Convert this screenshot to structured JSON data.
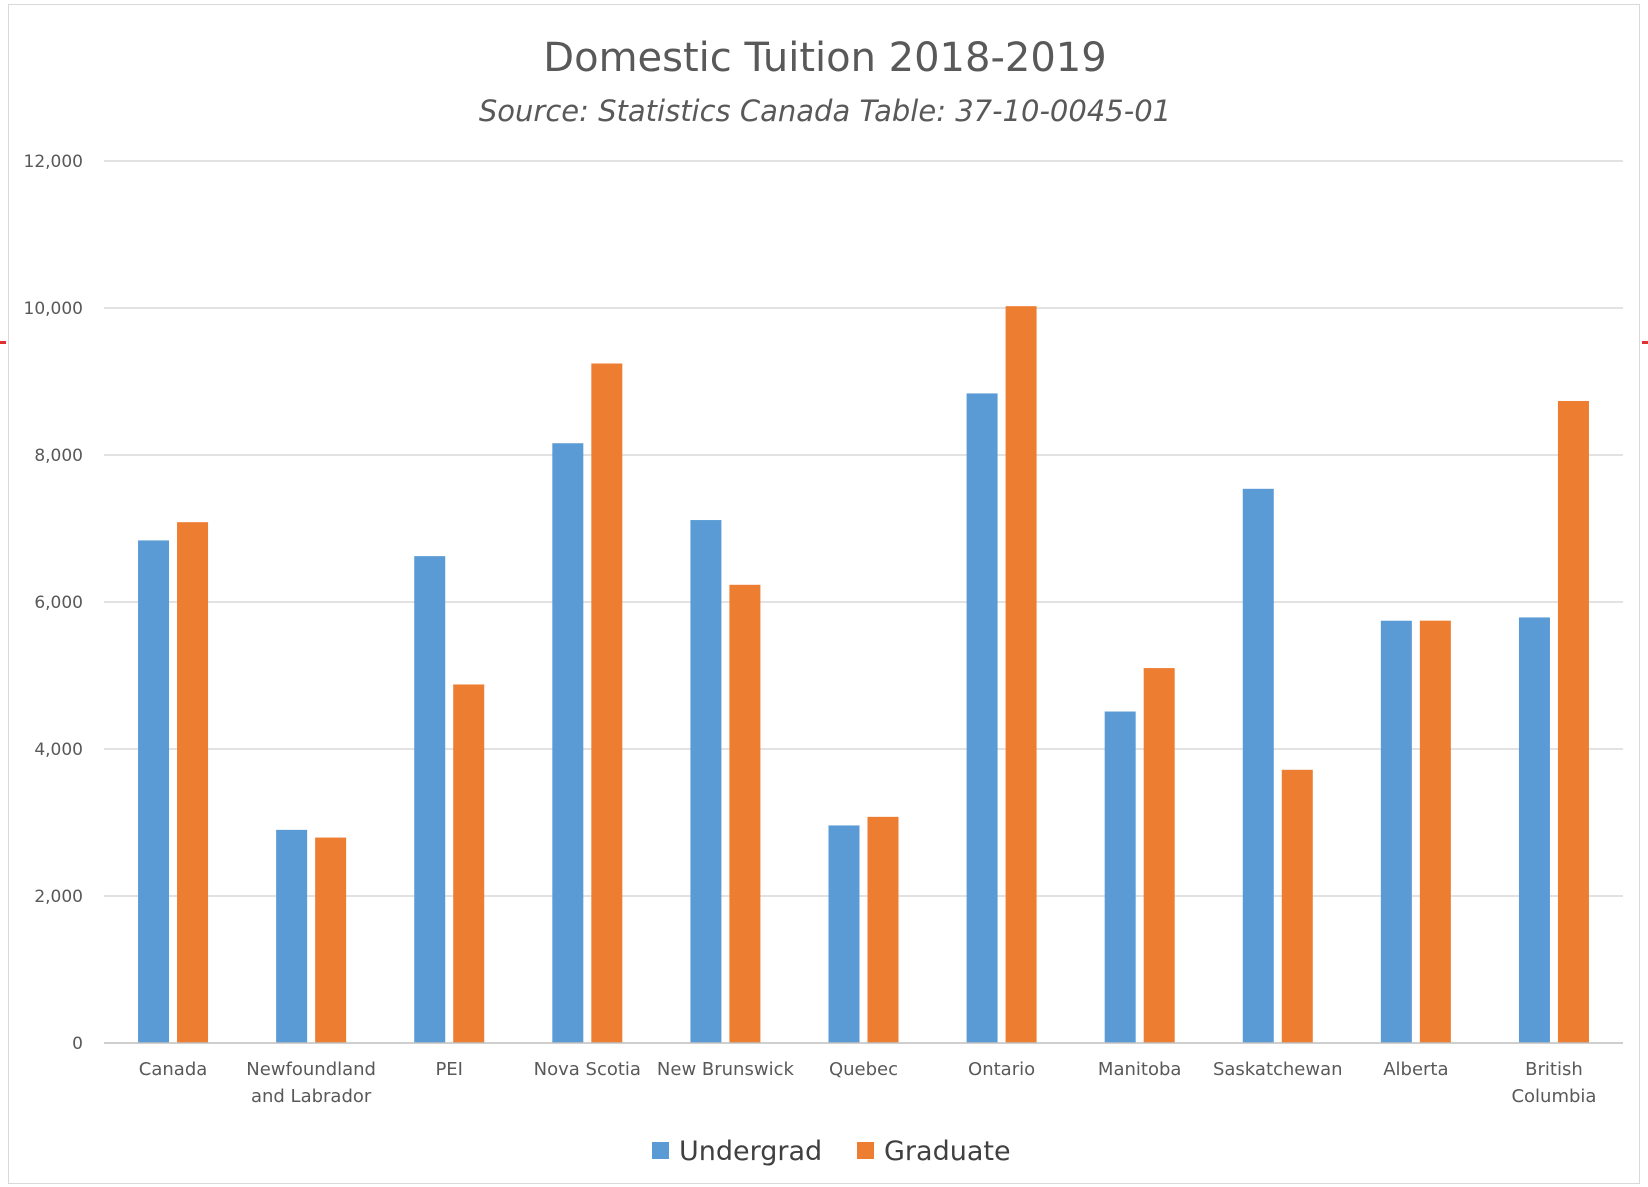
{
  "chart_data": {
    "type": "bar",
    "title": "Domestic Tuition 2018-2019",
    "subtitle": "Source: Statistics Canada Table: 37-10-0045-01",
    "xlabel": "",
    "ylabel": "",
    "ylim": [
      0,
      12000
    ],
    "yticks": [
      0,
      2000,
      4000,
      6000,
      8000,
      10000,
      12000
    ],
    "ytick_labels": [
      "0",
      "2,000",
      "4,000",
      "6,000",
      "8,000",
      "10,000",
      "12,000"
    ],
    "grid": true,
    "legend_position": "bottom",
    "categories": [
      [
        "Canada"
      ],
      [
        "Newfoundland",
        "and Labrador"
      ],
      [
        "PEI"
      ],
      [
        "Nova Scotia"
      ],
      [
        "New Brunswick"
      ],
      [
        "Quebec"
      ],
      [
        "Ontario"
      ],
      [
        "Manitoba"
      ],
      [
        "Saskatchewan"
      ],
      [
        "Alberta"
      ],
      [
        "British",
        "Columbia"
      ]
    ],
    "series": [
      {
        "name": "Undergrad",
        "color": "#5b9bd5",
        "values": [
          6838,
          2900,
          6624,
          8160,
          7115,
          2960,
          8838,
          4510,
          7540,
          5745,
          5790
        ]
      },
      {
        "name": "Graduate",
        "color": "#ed7d31",
        "values": [
          7086,
          2795,
          4878,
          9245,
          6234,
          3077,
          10025,
          5101,
          3717,
          5746,
          8735
        ]
      }
    ]
  }
}
